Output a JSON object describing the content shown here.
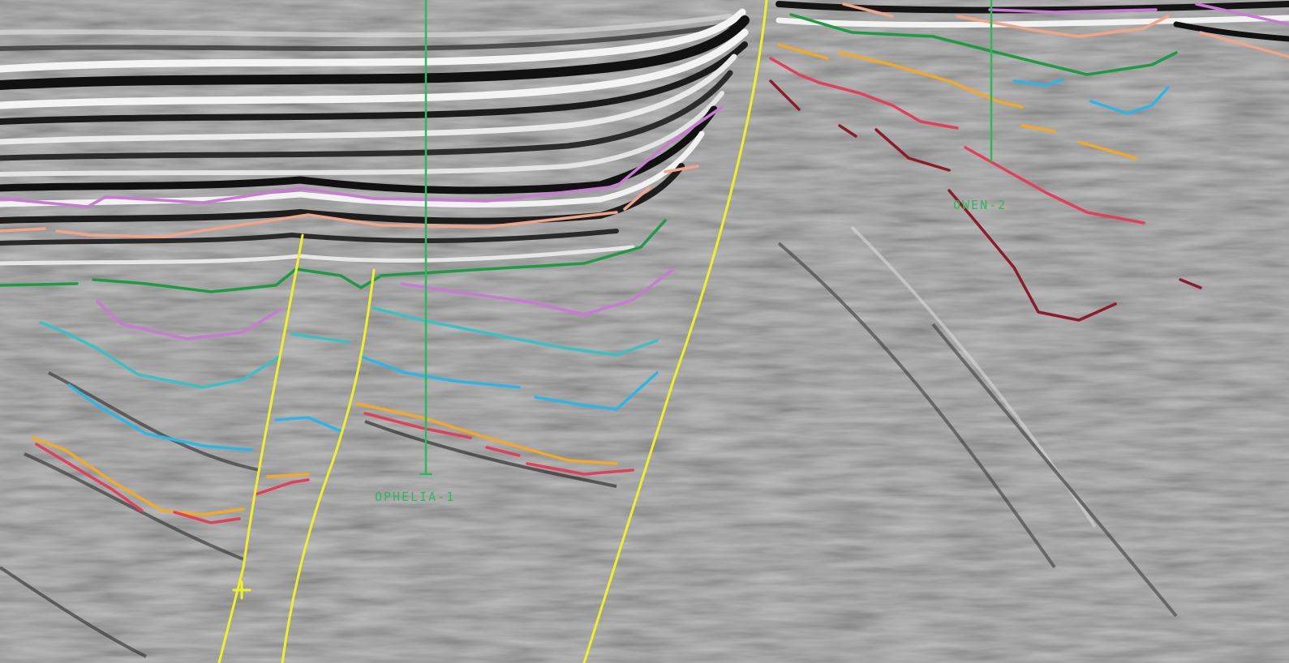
{
  "section": {
    "background_color": "#8e8e8e"
  },
  "wells": [
    {
      "name": "OPHELIA-1",
      "color": "#2eb85a"
    },
    {
      "name": "OWEN-2",
      "color": "#2eb85a"
    }
  ],
  "horizons": [
    {
      "id": "h-magenta",
      "color": "#c97ad2"
    },
    {
      "id": "h-salmon",
      "color": "#f0a58a"
    },
    {
      "id": "h-green",
      "color": "#1e9a43"
    },
    {
      "id": "h-cyan",
      "color": "#3bc0c4"
    },
    {
      "id": "h-blue",
      "color": "#2bb6e6"
    },
    {
      "id": "h-orange",
      "color": "#f0a92a"
    },
    {
      "id": "h-red",
      "color": "#e0405a"
    },
    {
      "id": "h-maroon",
      "color": "#8c1c2c"
    }
  ],
  "fault_color": "#f0f02a"
}
